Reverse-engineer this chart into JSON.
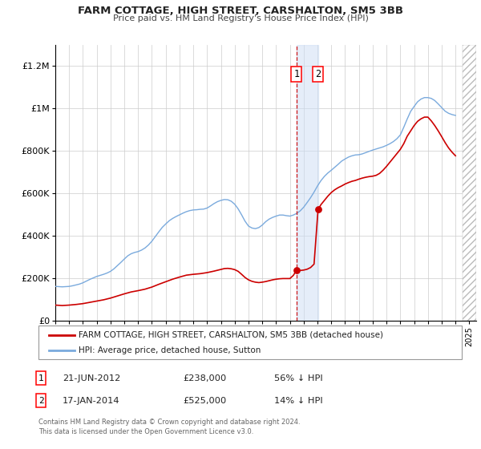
{
  "title": "FARM COTTAGE, HIGH STREET, CARSHALTON, SM5 3BB",
  "subtitle": "Price paid vs. HM Land Registry's House Price Index (HPI)",
  "legend_line1": "FARM COTTAGE, HIGH STREET, CARSHALTON, SM5 3BB (detached house)",
  "legend_line2": "HPI: Average price, detached house, Sutton",
  "transaction1_label": "1",
  "transaction1_date": "21-JUN-2012",
  "transaction1_price": "£238,000",
  "transaction1_hpi": "56% ↓ HPI",
  "transaction1_x": 2012.47,
  "transaction1_y": 238000,
  "transaction2_label": "2",
  "transaction2_date": "17-JAN-2014",
  "transaction2_price": "£525,000",
  "transaction2_hpi": "14% ↓ HPI",
  "transaction2_x": 2014.04,
  "transaction2_y": 525000,
  "red_line_color": "#cc0000",
  "blue_line_color": "#7aaadd",
  "ylim": [
    0,
    1300000
  ],
  "xlim_start": 1995,
  "xlim_end": 2025.5,
  "footer": "Contains HM Land Registry data © Crown copyright and database right 2024.\nThis data is licensed under the Open Government Licence v3.0.",
  "hpi_years": [
    1995.0,
    1995.25,
    1995.5,
    1995.75,
    1996.0,
    1996.25,
    1996.5,
    1996.75,
    1997.0,
    1997.25,
    1997.5,
    1997.75,
    1998.0,
    1998.25,
    1998.5,
    1998.75,
    1999.0,
    1999.25,
    1999.5,
    1999.75,
    2000.0,
    2000.25,
    2000.5,
    2000.75,
    2001.0,
    2001.25,
    2001.5,
    2001.75,
    2002.0,
    2002.25,
    2002.5,
    2002.75,
    2003.0,
    2003.25,
    2003.5,
    2003.75,
    2004.0,
    2004.25,
    2004.5,
    2004.75,
    2005.0,
    2005.25,
    2005.5,
    2005.75,
    2006.0,
    2006.25,
    2006.5,
    2006.75,
    2007.0,
    2007.25,
    2007.5,
    2007.75,
    2008.0,
    2008.25,
    2008.5,
    2008.75,
    2009.0,
    2009.25,
    2009.5,
    2009.75,
    2010.0,
    2010.25,
    2010.5,
    2010.75,
    2011.0,
    2011.25,
    2011.5,
    2011.75,
    2012.0,
    2012.25,
    2012.5,
    2012.75,
    2013.0,
    2013.25,
    2013.5,
    2013.75,
    2014.0,
    2014.25,
    2014.5,
    2014.75,
    2015.0,
    2015.25,
    2015.5,
    2015.75,
    2016.0,
    2016.25,
    2016.5,
    2016.75,
    2017.0,
    2017.25,
    2017.5,
    2017.75,
    2018.0,
    2018.25,
    2018.5,
    2018.75,
    2019.0,
    2019.25,
    2019.5,
    2019.75,
    2020.0,
    2020.25,
    2020.5,
    2020.75,
    2021.0,
    2021.25,
    2021.5,
    2021.75,
    2022.0,
    2022.25,
    2022.5,
    2022.75,
    2023.0,
    2023.25,
    2023.5,
    2023.75,
    2024.0
  ],
  "hpi_values": [
    163000,
    162000,
    161000,
    162000,
    163000,
    166000,
    170000,
    174000,
    180000,
    188000,
    196000,
    203000,
    210000,
    215000,
    220000,
    226000,
    234000,
    246000,
    261000,
    276000,
    292000,
    307000,
    317000,
    323000,
    327000,
    334000,
    344000,
    358000,
    376000,
    398000,
    420000,
    441000,
    457000,
    472000,
    483000,
    492000,
    500000,
    508000,
    515000,
    520000,
    523000,
    524000,
    526000,
    527000,
    532000,
    542000,
    553000,
    562000,
    568000,
    572000,
    571000,
    564000,
    550000,
    528000,
    500000,
    470000,
    447000,
    438000,
    435000,
    440000,
    452000,
    468000,
    480000,
    488000,
    494000,
    499000,
    499000,
    496000,
    494000,
    499000,
    507000,
    519000,
    536000,
    558000,
    581000,
    607000,
    636000,
    661000,
    681000,
    697000,
    710000,
    724000,
    738000,
    753000,
    763000,
    772000,
    778000,
    782000,
    783000,
    787000,
    793000,
    799000,
    805000,
    810000,
    815000,
    820000,
    827000,
    835000,
    845000,
    858000,
    876000,
    912000,
    951000,
    987000,
    1010000,
    1032000,
    1045000,
    1052000,
    1052000,
    1048000,
    1038000,
    1022000,
    1005000,
    988000,
    978000,
    972000,
    968000
  ],
  "red_years": [
    1995.0,
    1995.25,
    1995.5,
    1995.75,
    1996.0,
    1996.5,
    1997.0,
    1997.5,
    1998.0,
    1998.5,
    1999.0,
    1999.5,
    2000.0,
    2000.5,
    2001.0,
    2001.5,
    2002.0,
    2002.5,
    2003.0,
    2003.5,
    2004.0,
    2004.5,
    2005.0,
    2005.5,
    2006.0,
    2006.5,
    2007.0,
    2007.25,
    2007.5,
    2007.75,
    2008.0,
    2008.25,
    2008.5,
    2008.75,
    2009.0,
    2009.25,
    2009.5,
    2009.75,
    2010.0,
    2010.25,
    2010.5,
    2010.75,
    2011.0,
    2011.25,
    2011.5,
    2011.75,
    2012.0,
    2012.25,
    2012.47,
    2012.47,
    2012.5,
    2012.75,
    2013.0,
    2013.25,
    2013.5,
    2013.75,
    2014.04,
    2014.25,
    2014.5,
    2014.75,
    2015.0,
    2015.25,
    2015.5,
    2015.75,
    2016.0,
    2016.25,
    2016.5,
    2016.75,
    2017.0,
    2017.25,
    2017.5,
    2017.75,
    2018.0,
    2018.25,
    2018.5,
    2018.75,
    2019.0,
    2019.25,
    2019.5,
    2019.75,
    2020.0,
    2020.25,
    2020.5,
    2020.75,
    2021.0,
    2021.25,
    2021.5,
    2021.75,
    2022.0,
    2022.25,
    2022.5,
    2022.75,
    2023.0,
    2023.25,
    2023.5,
    2023.75,
    2024.0
  ],
  "red_values": [
    75000,
    74000,
    73000,
    74000,
    75000,
    78000,
    82000,
    88000,
    94000,
    100000,
    108000,
    118000,
    128000,
    137000,
    143000,
    150000,
    160000,
    173000,
    185000,
    197000,
    207000,
    216000,
    220000,
    223000,
    228000,
    235000,
    243000,
    247000,
    248000,
    246000,
    242000,
    234000,
    220000,
    205000,
    194000,
    187000,
    183000,
    181000,
    183000,
    186000,
    190000,
    194000,
    197000,
    199000,
    200000,
    200000,
    200000,
    215000,
    238000,
    238000,
    238000,
    238000,
    240000,
    244000,
    252000,
    268000,
    525000,
    548000,
    568000,
    588000,
    605000,
    618000,
    628000,
    636000,
    645000,
    652000,
    658000,
    662000,
    668000,
    673000,
    677000,
    680000,
    682000,
    686000,
    695000,
    710000,
    728000,
    748000,
    768000,
    788000,
    808000,
    835000,
    870000,
    895000,
    920000,
    940000,
    952000,
    960000,
    960000,
    942000,
    920000,
    895000,
    868000,
    840000,
    815000,
    795000,
    778000
  ]
}
